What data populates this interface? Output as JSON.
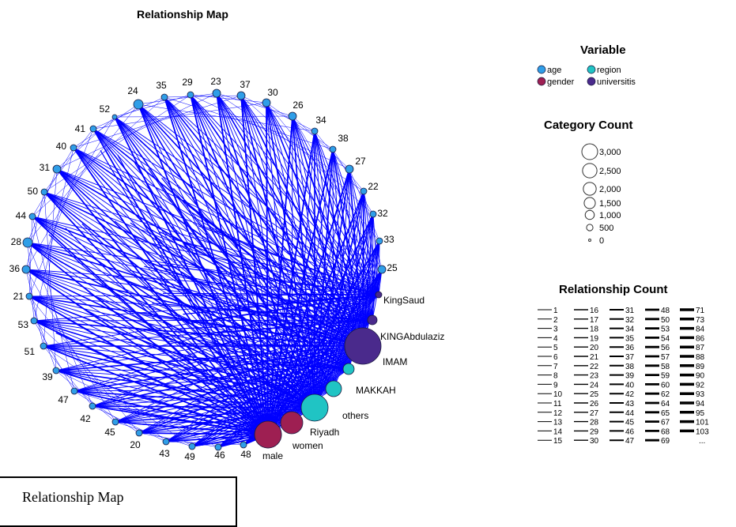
{
  "chart_data": {
    "type": "network",
    "title": "Relationship Map",
    "legend_variable": {
      "title": "Variable",
      "items": [
        {
          "label": "age",
          "color": "#2f9ee8"
        },
        {
          "label": "region",
          "color": "#20c4c4"
        },
        {
          "label": "gender",
          "color": "#9e1f52"
        },
        {
          "label": "universitis",
          "color": "#4a2a8c"
        }
      ]
    },
    "legend_category_count": {
      "title": "Category Count",
      "items": [
        "3,000",
        "2,500",
        "2,000",
        "1,500",
        "1,000",
        "500",
        "0"
      ],
      "values": [
        3000,
        2500,
        2000,
        1500,
        1000,
        500,
        0
      ]
    },
    "legend_relationship_count": {
      "title": "Relationship Count",
      "columns": [
        [
          "1",
          "2",
          "3",
          "4",
          "5",
          "6",
          "7",
          "8",
          "9",
          "10",
          "11",
          "12",
          "13",
          "14",
          "15"
        ],
        [
          "16",
          "17",
          "18",
          "19",
          "20",
          "21",
          "22",
          "23",
          "24",
          "25",
          "26",
          "27",
          "28",
          "29",
          "30"
        ],
        [
          "31",
          "32",
          "34",
          "35",
          "36",
          "37",
          "38",
          "39",
          "40",
          "42",
          "43",
          "44",
          "45",
          "46",
          "47"
        ],
        [
          "48",
          "50",
          "53",
          "54",
          "56",
          "57",
          "58",
          "59",
          "60",
          "62",
          "64",
          "65",
          "67",
          "68",
          "69"
        ],
        [
          "71",
          "73",
          "84",
          "86",
          "87",
          "88",
          "89",
          "90",
          "92",
          "93",
          "94",
          "95",
          "101",
          "103",
          "..."
        ]
      ]
    },
    "nodes": [
      {
        "label": "24",
        "group": "age"
      },
      {
        "label": "35",
        "group": "age"
      },
      {
        "label": "29",
        "group": "age"
      },
      {
        "label": "23",
        "group": "age"
      },
      {
        "label": "37",
        "group": "age"
      },
      {
        "label": "30",
        "group": "age"
      },
      {
        "label": "26",
        "group": "age"
      },
      {
        "label": "34",
        "group": "age"
      },
      {
        "label": "38",
        "group": "age"
      },
      {
        "label": "27",
        "group": "age"
      },
      {
        "label": "22",
        "group": "age"
      },
      {
        "label": "32",
        "group": "age"
      },
      {
        "label": "33",
        "group": "age"
      },
      {
        "label": "25",
        "group": "age"
      },
      {
        "label": "KingSaud",
        "group": "universitis"
      },
      {
        "label": "",
        "group": "universitis"
      },
      {
        "label": "KINGAbdulaziz",
        "group": "universitis"
      },
      {
        "label": "IMAM",
        "group": "region"
      },
      {
        "label": "MAKKAH",
        "group": "region"
      },
      {
        "label": "others",
        "group": "region"
      },
      {
        "label": "Riyadh",
        "group": "gender"
      },
      {
        "label": "women",
        "group": "gender"
      },
      {
        "label": "male",
        "group": "age"
      },
      {
        "label": "48",
        "group": "age"
      },
      {
        "label": "46",
        "group": "age"
      },
      {
        "label": "49",
        "group": "age"
      },
      {
        "label": "43",
        "group": "age"
      },
      {
        "label": "20",
        "group": "age"
      },
      {
        "label": "45",
        "group": "age"
      },
      {
        "label": "42",
        "group": "age"
      },
      {
        "label": "47",
        "group": "age"
      },
      {
        "label": "39",
        "group": "age"
      },
      {
        "label": "51",
        "group": "age"
      },
      {
        "label": "53",
        "group": "age"
      },
      {
        "label": "21",
        "group": "age"
      },
      {
        "label": "36",
        "group": "age"
      },
      {
        "label": "28",
        "group": "age"
      },
      {
        "label": "44",
        "group": "age"
      },
      {
        "label": "50",
        "group": "age"
      },
      {
        "label": "31",
        "group": "age"
      },
      {
        "label": "40",
        "group": "age"
      },
      {
        "label": "41",
        "group": "age"
      },
      {
        "label": "52",
        "group": "age"
      }
    ],
    "edge_color": "#0000ff"
  },
  "caption": "Relationship Map"
}
